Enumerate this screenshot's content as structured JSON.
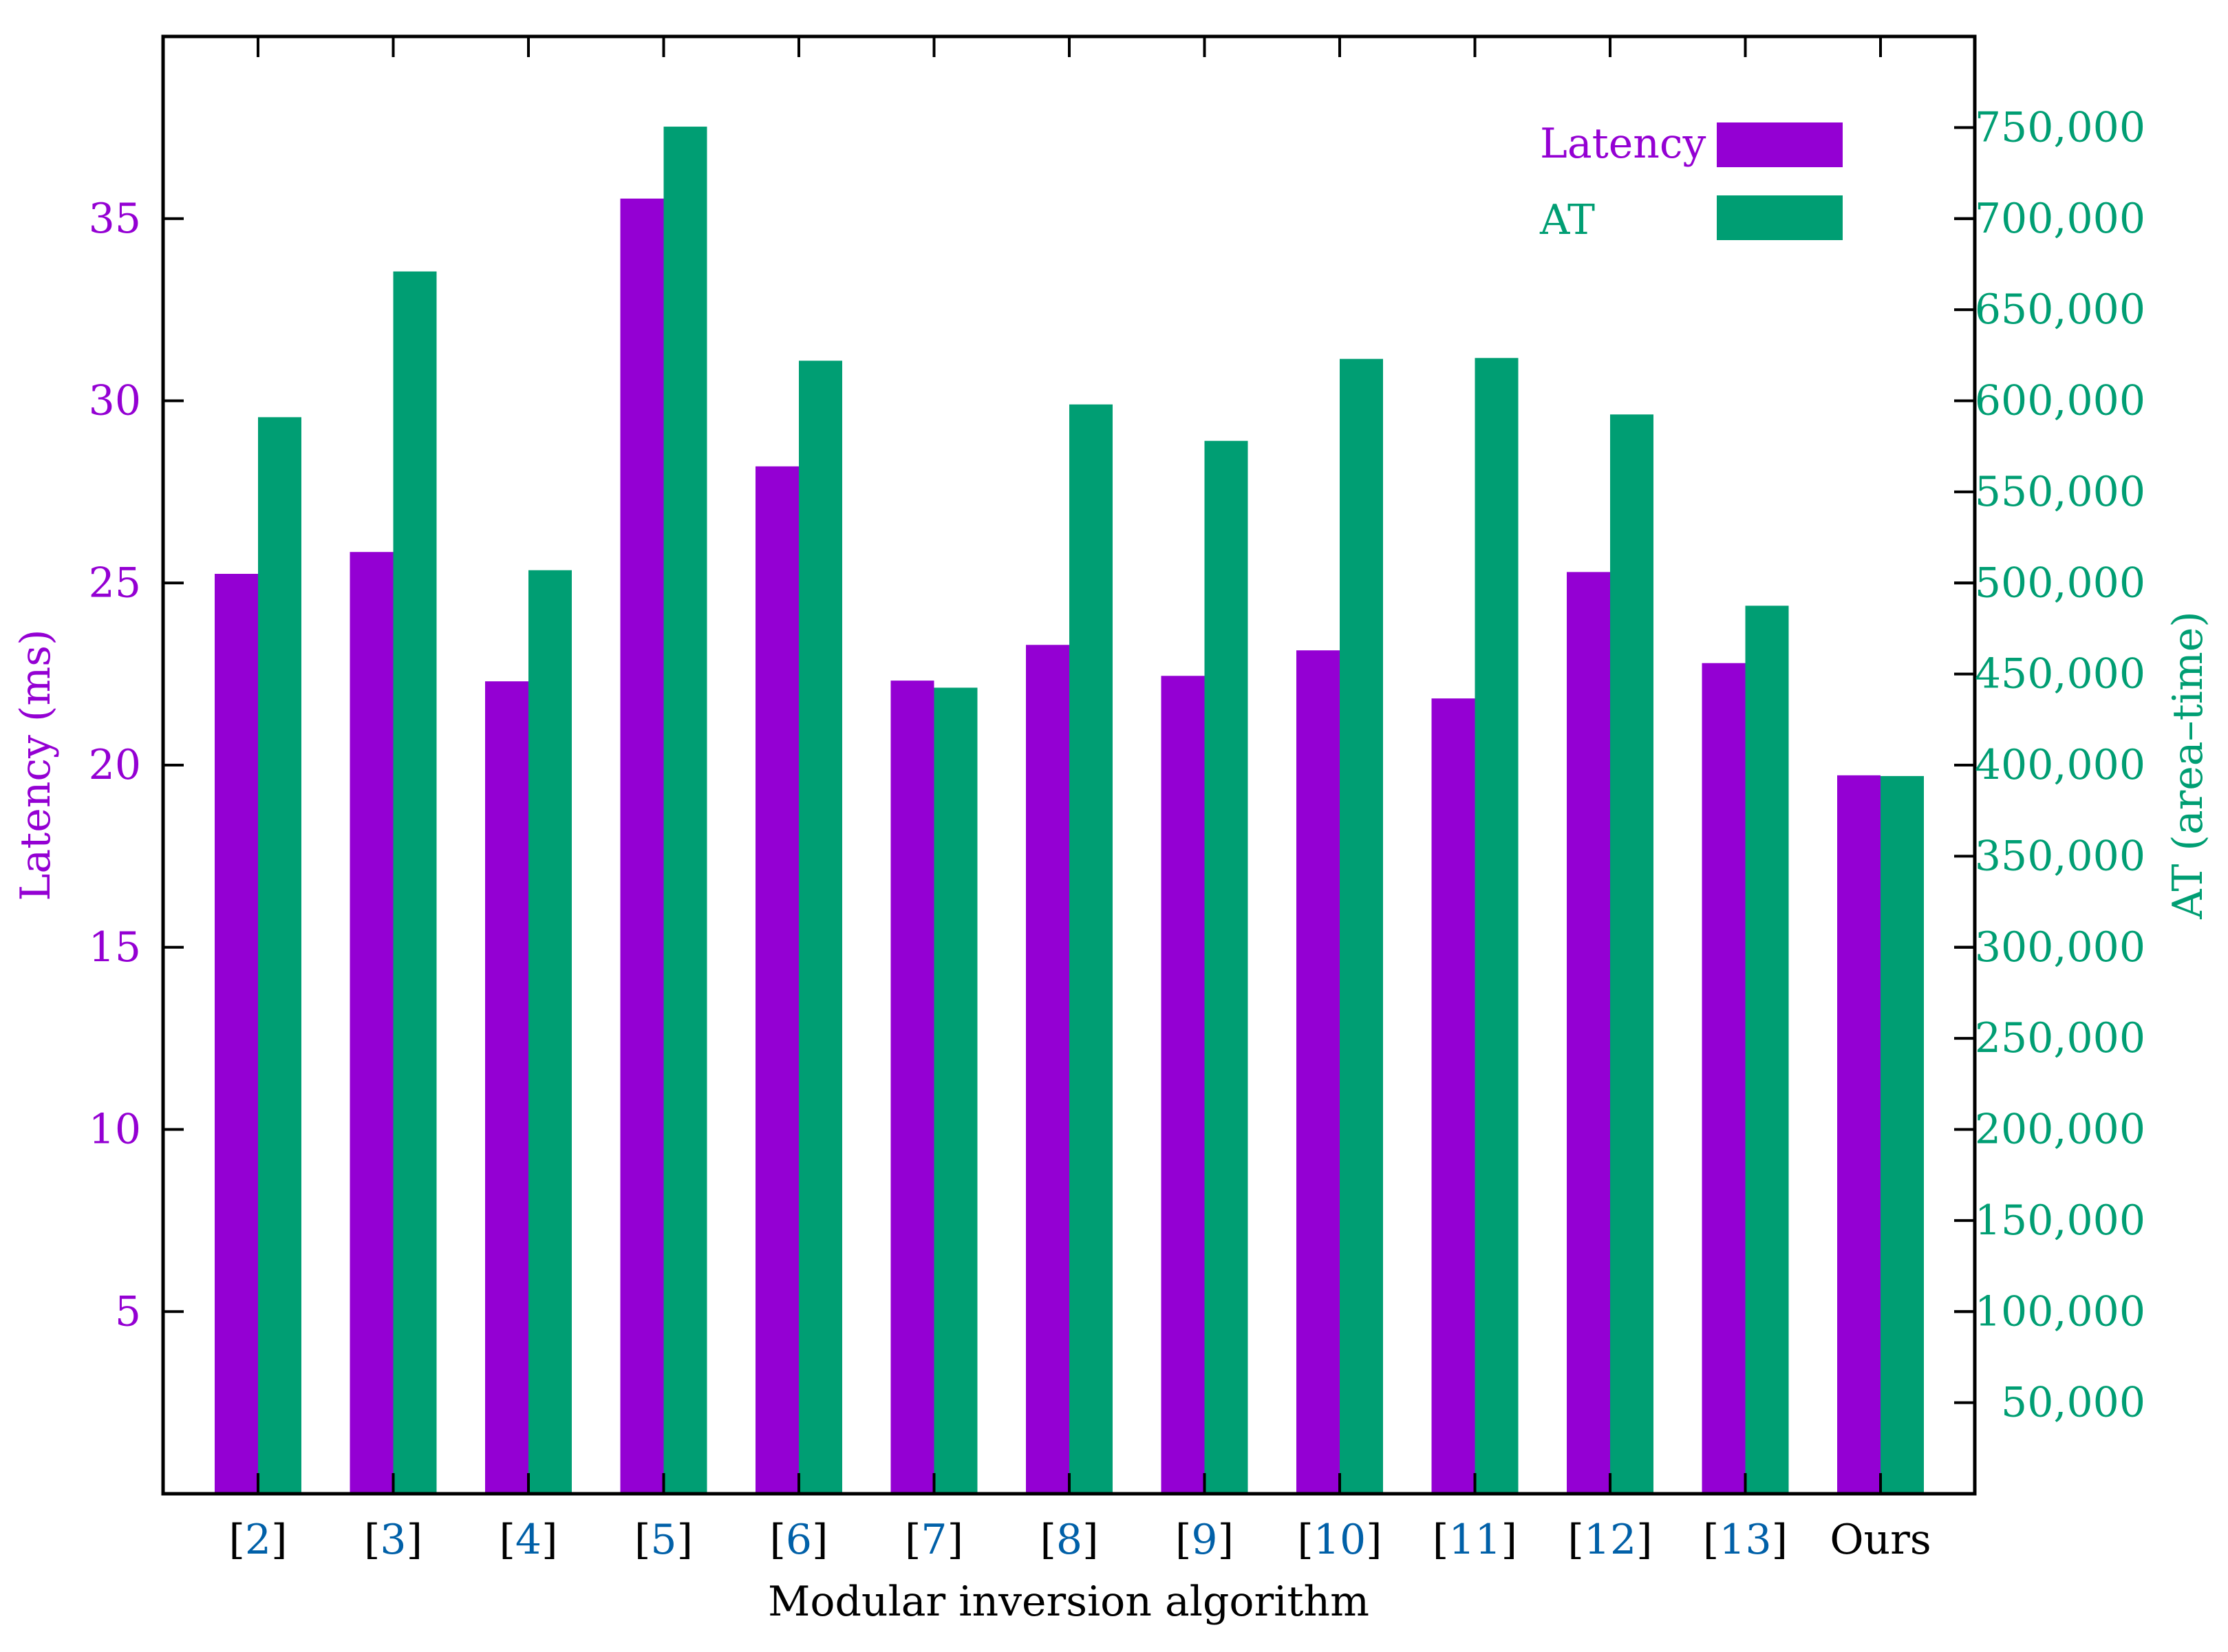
{
  "chart_data": {
    "type": "bar",
    "categories": [
      {
        "open": "[",
        "ref": "2",
        "close": "]"
      },
      {
        "open": "[",
        "ref": "3",
        "close": "]"
      },
      {
        "open": "[",
        "ref": "4",
        "close": "]"
      },
      {
        "open": "[",
        "ref": "5",
        "close": "]"
      },
      {
        "open": "[",
        "ref": "6",
        "close": "]"
      },
      {
        "open": "[",
        "ref": "7",
        "close": "]"
      },
      {
        "open": "[",
        "ref": "8",
        "close": "]"
      },
      {
        "open": "[",
        "ref": "9",
        "close": "]"
      },
      {
        "open": "[",
        "ref": "10",
        "close": "]"
      },
      {
        "open": "[",
        "ref": "11",
        "close": "]"
      },
      {
        "open": "[",
        "ref": "12",
        "close": "]"
      },
      {
        "open": "[",
        "ref": "13",
        "close": "]"
      },
      {
        "open": "",
        "ref": "Ours",
        "close": ""
      }
    ],
    "series": [
      {
        "name": "Latency",
        "axis": "left",
        "color": "#9400d3",
        "values": [
          25.25,
          25.85,
          22.3,
          35.55,
          28.2,
          22.32,
          23.3,
          22.45,
          23.15,
          21.83,
          25.3,
          22.8,
          19.72
        ]
      },
      {
        "name": "AT",
        "axis": "right",
        "color": "#009e73",
        "values": [
          591000,
          671000,
          507000,
          750500,
          622000,
          442500,
          598000,
          578000,
          623000,
          623500,
          592500,
          487500,
          394000
        ]
      }
    ],
    "xlabel": "Modular inversion algorithm",
    "ylabel_left": "Latency (ms)",
    "ylabel_right": "AT (area–time)",
    "ylim_left": [
      0,
      40
    ],
    "ylim_right": [
      0,
      800000
    ],
    "yticks_left": [
      "5",
      "10",
      "15",
      "20",
      "25",
      "30",
      "35"
    ],
    "yticks_right": [
      "50,000",
      "100,000",
      "150,000",
      "200,000",
      "250,000",
      "300,000",
      "350,000",
      "400,000",
      "450,000",
      "500,000",
      "550,000",
      "600,000",
      "650,000",
      "700,000",
      "750,000"
    ],
    "legend": "top-right",
    "grid": false,
    "ref_color": "#0060a8"
  }
}
